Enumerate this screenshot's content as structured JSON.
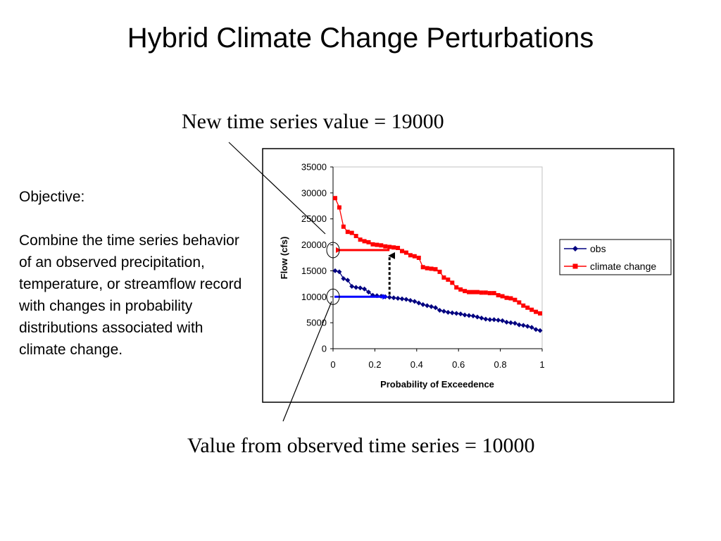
{
  "slide": {
    "title": "Hybrid Climate Change Perturbations",
    "callout_top": "New time series value = 19000",
    "callout_bottom": "Value from observed time series = 10000",
    "objective_heading": "Objective:",
    "objective_text": "Combine the time series behavior of an observed precipitation, temperature, or streamflow record with changes in probability distributions associated with climate change."
  },
  "colors": {
    "obs": "#000080",
    "climate": "#ff0000",
    "arrow_obs": "#0000ff",
    "arrow_climate": "#ff0000"
  },
  "chart_data": {
    "type": "line",
    "xlabel": "Probability of Exceedence",
    "ylabel": "Flow (cfs)",
    "xlim": [
      0,
      1
    ],
    "ylim": [
      0,
      35000
    ],
    "xticks": [
      "0",
      "0.2",
      "0.4",
      "0.6",
      "0.8",
      "1"
    ],
    "yticks": [
      "0",
      "5000",
      "10000",
      "15000",
      "20000",
      "25000",
      "30000",
      "35000"
    ],
    "grid": false,
    "legend": "right",
    "series": [
      {
        "name": "obs",
        "marker": "diamond",
        "x": [
          0.01,
          0.03,
          0.05,
          0.07,
          0.09,
          0.11,
          0.13,
          0.15,
          0.17,
          0.19,
          0.21,
          0.23,
          0.25,
          0.27,
          0.29,
          0.31,
          0.33,
          0.35,
          0.37,
          0.39,
          0.41,
          0.43,
          0.45,
          0.47,
          0.49,
          0.51,
          0.53,
          0.55,
          0.57,
          0.59,
          0.61,
          0.63,
          0.65,
          0.67,
          0.69,
          0.71,
          0.73,
          0.75,
          0.77,
          0.79,
          0.81,
          0.83,
          0.85,
          0.87,
          0.89,
          0.91,
          0.93,
          0.95,
          0.97,
          0.99
        ],
        "values": [
          15000,
          14800,
          13500,
          13200,
          12000,
          11800,
          11700,
          11500,
          10900,
          10300,
          10200,
          10100,
          10000,
          9900,
          9800,
          9700,
          9600,
          9500,
          9300,
          9100,
          8800,
          8500,
          8300,
          8100,
          7900,
          7400,
          7200,
          7000,
          6900,
          6800,
          6700,
          6500,
          6400,
          6300,
          6100,
          5900,
          5700,
          5600,
          5600,
          5500,
          5400,
          5100,
          5000,
          4900,
          4600,
          4500,
          4300,
          4100,
          3700,
          3500
        ]
      },
      {
        "name": "climate change",
        "marker": "square",
        "x": [
          0.01,
          0.03,
          0.05,
          0.07,
          0.09,
          0.11,
          0.13,
          0.15,
          0.17,
          0.19,
          0.21,
          0.23,
          0.25,
          0.27,
          0.29,
          0.31,
          0.33,
          0.35,
          0.37,
          0.39,
          0.41,
          0.43,
          0.45,
          0.47,
          0.49,
          0.51,
          0.53,
          0.55,
          0.57,
          0.59,
          0.61,
          0.63,
          0.65,
          0.67,
          0.69,
          0.71,
          0.73,
          0.75,
          0.77,
          0.79,
          0.81,
          0.83,
          0.85,
          0.87,
          0.89,
          0.91,
          0.93,
          0.95,
          0.97,
          0.99
        ],
        "values": [
          29000,
          27200,
          23500,
          22500,
          22300,
          21700,
          21000,
          20700,
          20500,
          20100,
          20000,
          19900,
          19700,
          19600,
          19500,
          19400,
          18800,
          18500,
          18000,
          17800,
          17500,
          15700,
          15500,
          15400,
          15300,
          14800,
          13700,
          13300,
          12700,
          11800,
          11400,
          11100,
          10900,
          10900,
          10900,
          10800,
          10800,
          10700,
          10700,
          10300,
          10100,
          9800,
          9700,
          9400,
          8900,
          8300,
          7900,
          7500,
          7100,
          6800
        ]
      }
    ],
    "annotations": {
      "new_value": 19000,
      "observed_value": 10000,
      "observed_probability": 0.27
    }
  }
}
